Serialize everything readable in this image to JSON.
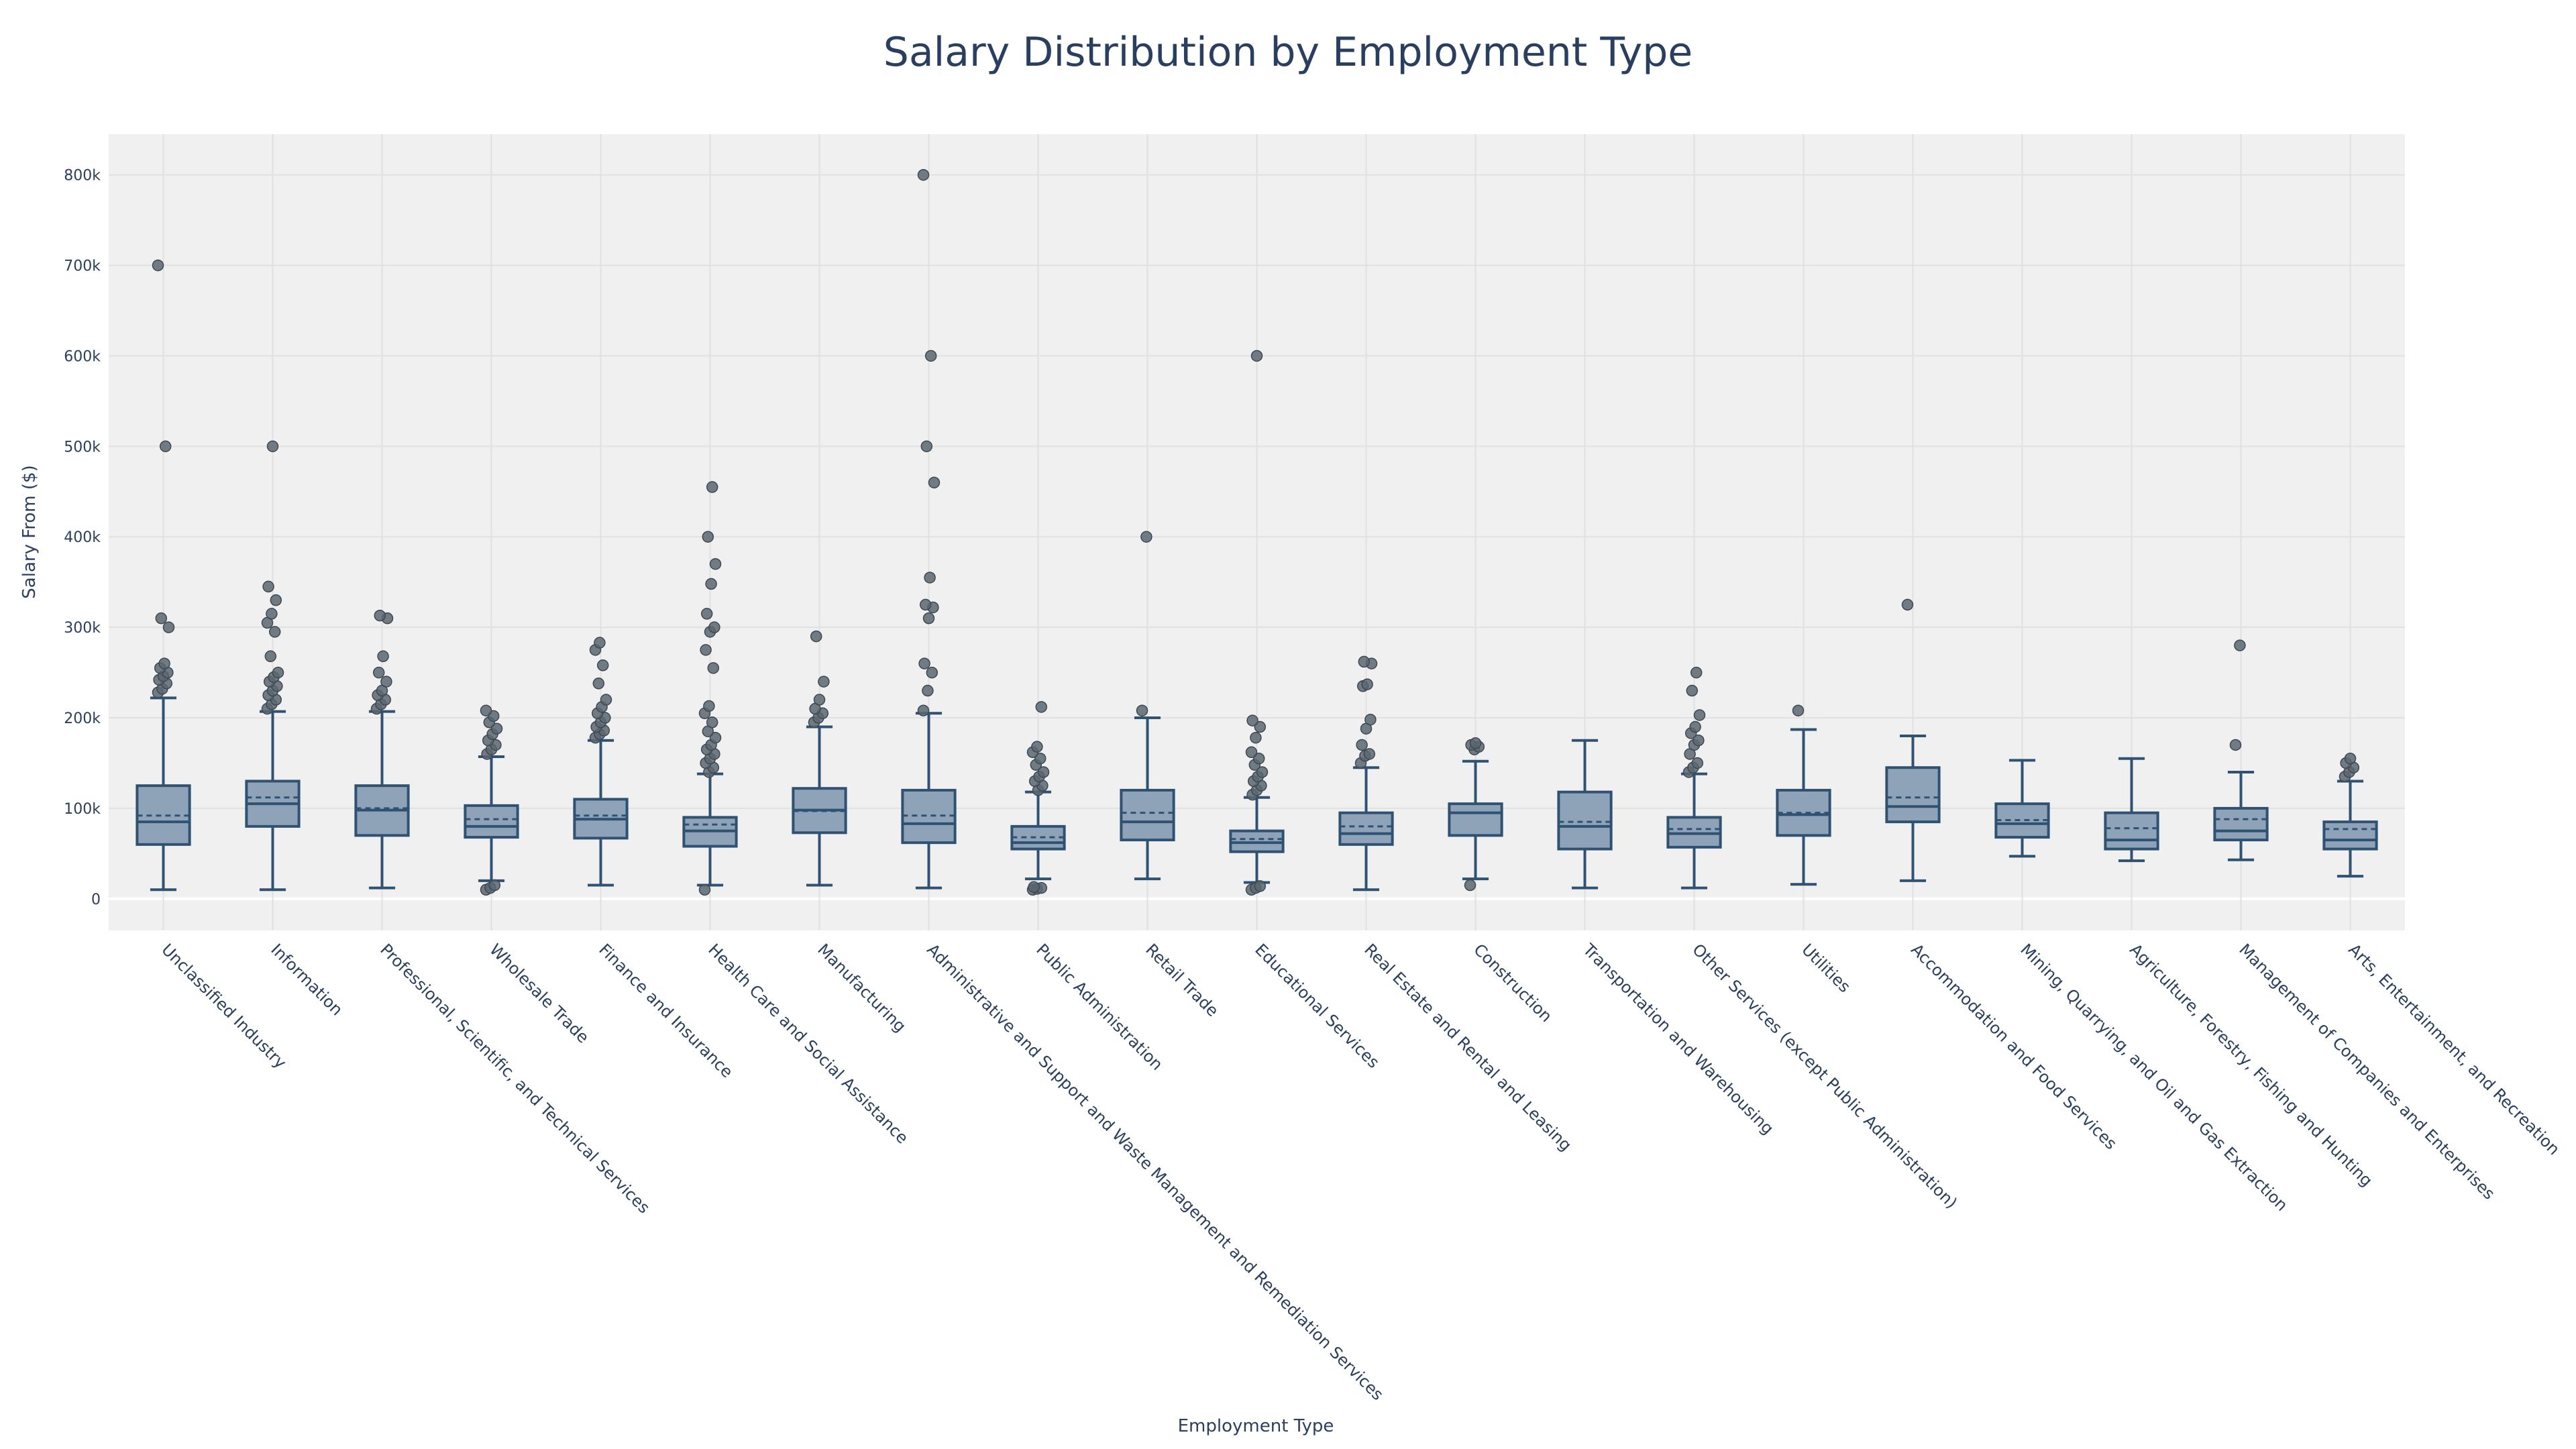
{
  "colors": {
    "plot_background": "#f0f0f0",
    "grid": "#e1e1e1",
    "zero_line": "#ffffff",
    "box_fill": "#8fa3b8",
    "box_line": "#2f5273",
    "outlier": "#5b6670",
    "text": "#2a3f5f"
  },
  "chart_data": {
    "type": "box",
    "title": "Salary Distribution by Employment Type",
    "xlabel": "Employment Type",
    "ylabel": "Salary From ($)",
    "ylim": [
      -35000,
      845000
    ],
    "yticks": [
      {
        "value": 0,
        "label": "0"
      },
      {
        "value": 100000,
        "label": "100k"
      },
      {
        "value": 200000,
        "label": "200k"
      },
      {
        "value": 300000,
        "label": "300k"
      },
      {
        "value": 400000,
        "label": "400k"
      },
      {
        "value": 500000,
        "label": "500k"
      },
      {
        "value": 600000,
        "label": "600k"
      },
      {
        "value": 700000,
        "label": "700k"
      },
      {
        "value": 800000,
        "label": "800k"
      }
    ],
    "grid": true,
    "boxmean": "dashed line",
    "categories": [
      "Unclassified Industry",
      "Information",
      "Professional, Scientific, and Technical Services",
      "Wholesale Trade",
      "Finance and Insurance",
      "Health Care and Social Assistance",
      "Manufacturing",
      "Administrative and Support and Waste Management and Remediation Services",
      "Public Administration",
      "Retail Trade",
      "Educational Services",
      "Real Estate and Rental and Leasing",
      "Construction",
      "Transportation and Warehousing",
      "Other Services (except Public Administration)",
      "Utilities",
      "Accommodation and Food Services",
      "Mining, Quarrying, and Oil and Gas Extraction",
      "Agriculture, Forestry, Fishing and Hunting",
      "Management of Companies and Enterprises",
      "Arts, Entertainment, and Recreation"
    ],
    "boxes": [
      {
        "min": 10000,
        "q1": 60000,
        "median": 85000,
        "q3": 125000,
        "max": 222000,
        "mean": 92000,
        "outliers": [
          228000,
          232000,
          238000,
          242000,
          246000,
          250000,
          255000,
          260000,
          300000,
          310000,
          500000,
          700000
        ]
      },
      {
        "min": 10000,
        "q1": 80000,
        "median": 105000,
        "q3": 130000,
        "max": 207000,
        "mean": 112000,
        "outliers": [
          210000,
          215000,
          220000,
          225000,
          230000,
          235000,
          240000,
          245000,
          250000,
          268000,
          295000,
          305000,
          315000,
          330000,
          345000,
          500000
        ]
      },
      {
        "min": 12000,
        "q1": 70000,
        "median": 98000,
        "q3": 125000,
        "max": 207000,
        "mean": 100000,
        "outliers": [
          210000,
          215000,
          220000,
          225000,
          230000,
          240000,
          250000,
          268000,
          310000,
          313000
        ]
      },
      {
        "min": 20000,
        "q1": 68000,
        "median": 80000,
        "q3": 103000,
        "max": 157000,
        "mean": 88000,
        "outliers": [
          10000,
          12000,
          15000,
          160000,
          165000,
          170000,
          175000,
          182000,
          188000,
          195000,
          202000,
          208000
        ]
      },
      {
        "min": 15000,
        "q1": 67000,
        "median": 88000,
        "q3": 110000,
        "max": 175000,
        "mean": 92000,
        "outliers": [
          178000,
          182000,
          186000,
          190000,
          195000,
          200000,
          205000,
          212000,
          220000,
          238000,
          258000,
          275000,
          283000
        ]
      },
      {
        "min": 15000,
        "q1": 58000,
        "median": 75000,
        "q3": 90000,
        "max": 138000,
        "mean": 82000,
        "outliers": [
          10000,
          140000,
          145000,
          150000,
          155000,
          160000,
          165000,
          170000,
          178000,
          185000,
          195000,
          205000,
          213000,
          255000,
          275000,
          295000,
          300000,
          315000,
          348000,
          370000,
          400000,
          455000
        ]
      },
      {
        "min": 15000,
        "q1": 73000,
        "median": 98000,
        "q3": 122000,
        "max": 190000,
        "mean": 97000,
        "outliers": [
          195000,
          200000,
          205000,
          210000,
          220000,
          240000,
          290000
        ]
      },
      {
        "min": 12000,
        "q1": 62000,
        "median": 83000,
        "q3": 120000,
        "max": 205000,
        "mean": 92000,
        "outliers": [
          208000,
          230000,
          250000,
          260000,
          310000,
          322000,
          325000,
          355000,
          460000,
          500000,
          600000,
          800000
        ]
      },
      {
        "min": 22000,
        "q1": 55000,
        "median": 62000,
        "q3": 80000,
        "max": 118000,
        "mean": 68000,
        "outliers": [
          10000,
          11000,
          12000,
          13000,
          120000,
          125000,
          130000,
          135000,
          140000,
          148000,
          155000,
          162000,
          168000,
          212000
        ]
      },
      {
        "min": 22000,
        "q1": 65000,
        "median": 85000,
        "q3": 120000,
        "max": 200000,
        "mean": 95000,
        "outliers": [
          208000,
          400000
        ]
      },
      {
        "min": 18000,
        "q1": 52000,
        "median": 62000,
        "q3": 75000,
        "max": 112000,
        "mean": 66000,
        "outliers": [
          10000,
          12000,
          14000,
          115000,
          120000,
          125000,
          130000,
          135000,
          140000,
          148000,
          155000,
          162000,
          178000,
          190000,
          197000,
          600000
        ]
      },
      {
        "min": 10000,
        "q1": 60000,
        "median": 72000,
        "q3": 95000,
        "max": 145000,
        "mean": 80000,
        "outliers": [
          150000,
          158000,
          160000,
          170000,
          188000,
          198000,
          235000,
          237000,
          260000,
          262000
        ]
      },
      {
        "min": 22000,
        "q1": 70000,
        "median": 95000,
        "q3": 105000,
        "max": 152000,
        "mean": 95000,
        "outliers": [
          15000,
          165000,
          168000,
          170000,
          172000
        ]
      },
      {
        "min": 12000,
        "q1": 55000,
        "median": 80000,
        "q3": 118000,
        "max": 175000,
        "mean": 85000,
        "outliers": []
      },
      {
        "min": 12000,
        "q1": 57000,
        "median": 72000,
        "q3": 90000,
        "max": 138000,
        "mean": 77000,
        "outliers": [
          140000,
          145000,
          150000,
          160000,
          170000,
          175000,
          183000,
          190000,
          203000,
          230000,
          250000
        ]
      },
      {
        "min": 16000,
        "q1": 70000,
        "median": 93000,
        "q3": 120000,
        "max": 187000,
        "mean": 95000,
        "outliers": [
          208000
        ]
      },
      {
        "min": 20000,
        "q1": 85000,
        "median": 102000,
        "q3": 145000,
        "max": 180000,
        "mean": 112000,
        "outliers": [
          325000
        ]
      },
      {
        "min": 47000,
        "q1": 68000,
        "median": 83000,
        "q3": 105000,
        "max": 153000,
        "mean": 87000,
        "outliers": []
      },
      {
        "min": 42000,
        "q1": 55000,
        "median": 65000,
        "q3": 95000,
        "max": 155000,
        "mean": 78000,
        "outliers": []
      },
      {
        "min": 43000,
        "q1": 65000,
        "median": 75000,
        "q3": 100000,
        "max": 140000,
        "mean": 88000,
        "outliers": [
          170000,
          280000
        ]
      },
      {
        "min": 25000,
        "q1": 55000,
        "median": 65000,
        "q3": 85000,
        "max": 130000,
        "mean": 77000,
        "outliers": [
          135000,
          140000,
          145000,
          150000,
          155000
        ]
      }
    ]
  }
}
